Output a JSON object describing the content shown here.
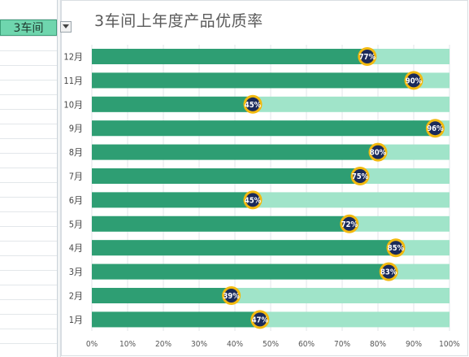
{
  "selector": {
    "value": "3车间"
  },
  "chart_data": {
    "type": "bar",
    "orientation": "horizontal",
    "title": "3车间上年度产品优质率",
    "categories": [
      "12月",
      "11月",
      "10月",
      "9月",
      "8月",
      "7月",
      "6月",
      "5月",
      "4月",
      "3月",
      "2月",
      "1月"
    ],
    "series": [
      {
        "values": [
          77,
          90,
          45,
          96,
          80,
          75,
          45,
          72,
          85,
          83,
          39,
          47
        ]
      }
    ],
    "data_labels": [
      "77%",
      "90%",
      "45%",
      "96%",
      "80%",
      "75%",
      "45%",
      "72%",
      "85%",
      "83%",
      "39%",
      "47%"
    ],
    "xlim": [
      0,
      100
    ],
    "x_ticks": [
      "0%",
      "10%",
      "20%",
      "30%",
      "40%",
      "50%",
      "60%",
      "70%",
      "80%",
      "90%",
      "100%"
    ],
    "grid": true,
    "colors": {
      "bar": "#2e9e73",
      "track": "#a0e4c9",
      "marker_fill": "#1b2a5a",
      "marker_ring": "#f2b90f",
      "label": "#ffffff"
    }
  }
}
